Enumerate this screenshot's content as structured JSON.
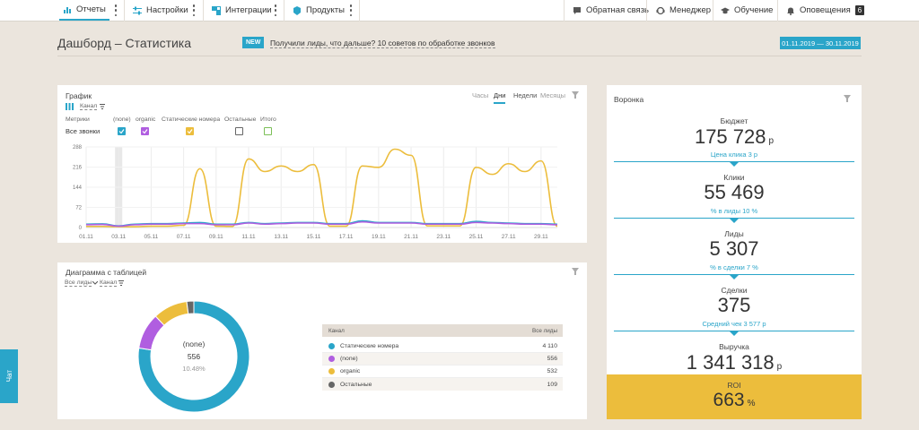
{
  "nav": {
    "reports": "Отчеты",
    "settings": "Настройки",
    "integrations": "Интеграции",
    "products": "Продукты",
    "feedback": "Обратная связь",
    "manager": "Менеджер",
    "learning": "Обучение",
    "alerts": "Оповещения",
    "alerts_count": "6"
  },
  "header": {
    "title": "Дашборд – Статистика",
    "new_badge": "NEW",
    "news": "Получили лиды, что дальше? 10 советов по обработке звонков",
    "date_range": "01.11.2019 — 30.11.2019"
  },
  "graph": {
    "title": "График",
    "group_by": "Канал",
    "periods": [
      "Часы",
      "Дни",
      "Недели",
      "Месяцы"
    ],
    "metrics_label": "Метрики",
    "all_calls_label": "Все звонки",
    "series_labels": [
      "(none)",
      "organic",
      "Статические номера",
      "Остальные",
      "Итого"
    ],
    "series_colors": [
      "#2aa5c9",
      "#b05ee0",
      "#ecbd3c",
      "#666666",
      "#7bbf57"
    ]
  },
  "chart_data": {
    "type": "line",
    "x": [
      "01.11",
      "02.11",
      "03.11",
      "04.11",
      "05.11",
      "06.11",
      "07.11",
      "08.11",
      "09.11",
      "10.11",
      "11.11",
      "12.11",
      "13.11",
      "14.11",
      "15.11",
      "16.11",
      "17.11",
      "18.11",
      "19.11",
      "20.11",
      "21.11",
      "22.11",
      "23.11",
      "24.11",
      "25.11",
      "26.11",
      "27.11",
      "28.11",
      "29.11",
      "30.11"
    ],
    "x_tick_labels": [
      "01.11",
      "03.11",
      "05.11",
      "07.11",
      "09.11",
      "11.11",
      "13.11",
      "15.11",
      "17.11",
      "19.11",
      "21.11",
      "23.11",
      "25.11",
      "27.11",
      "29.11"
    ],
    "y_ticks": [
      0,
      72,
      144,
      216,
      288
    ],
    "ylim": [
      0,
      288
    ],
    "series": [
      {
        "name": "Статические номера",
        "color": "#ecbd3c",
        "values": [
          4,
          4,
          3,
          3,
          5,
          5,
          8,
          210,
          5,
          4,
          245,
          200,
          220,
          200,
          225,
          5,
          5,
          220,
          215,
          280,
          258,
          6,
          6,
          6,
          215,
          190,
          228,
          200,
          238,
          5
        ]
      },
      {
        "name": "(none)",
        "color": "#2aa5c9",
        "values": [
          12,
          13,
          6,
          12,
          14,
          14,
          16,
          18,
          12,
          12,
          18,
          14,
          16,
          18,
          18,
          14,
          14,
          24,
          18,
          18,
          18,
          14,
          14,
          14,
          22,
          18,
          16,
          14,
          14,
          12
        ]
      },
      {
        "name": "organic",
        "color": "#b05ee0",
        "values": [
          10,
          11,
          5,
          10,
          12,
          12,
          14,
          14,
          10,
          10,
          16,
          12,
          14,
          16,
          16,
          12,
          12,
          20,
          16,
          16,
          16,
          12,
          12,
          12,
          18,
          16,
          14,
          12,
          12,
          10
        ]
      }
    ]
  },
  "donut": {
    "title": "Диаграмма с таблицей",
    "filter": "Все лиды",
    "group_by": "Канал",
    "center_label": "(none)",
    "center_value": "556",
    "center_percent": "10.48%",
    "table_header": {
      "channel": "Канал",
      "leads": "Все лиды"
    },
    "rows": [
      {
        "name": "Статические номера",
        "value": "4 110",
        "num": 4110,
        "color": "#2aa5c9"
      },
      {
        "name": "(none)",
        "value": "556",
        "num": 556,
        "color": "#b05ee0"
      },
      {
        "name": "organic",
        "value": "532",
        "num": 532,
        "color": "#ecbd3c"
      },
      {
        "name": "Остальные",
        "value": "109",
        "num": 109,
        "color": "#666666"
      }
    ]
  },
  "funnel": {
    "title": "Воронка",
    "budget_label": "Бюджет",
    "budget_value": "175 728",
    "currency": "р",
    "click_price": "Цена клика 3 р",
    "clicks_label": "Клики",
    "clicks_value": "55 469",
    "clicks_conv": "% в лиды 10 %",
    "leads_label": "Лиды",
    "leads_value": "5 307",
    "leads_conv": "% в сделки 7 %",
    "deals_label": "Сделки",
    "deals_value": "375",
    "avg_check": "Средний чек 3 577 р",
    "revenue_label": "Выручка",
    "revenue_value": "1 341 318",
    "roi_label": "ROI",
    "roi_value": "663",
    "roi_unit": "%"
  },
  "chat": {
    "label": "Чат"
  }
}
